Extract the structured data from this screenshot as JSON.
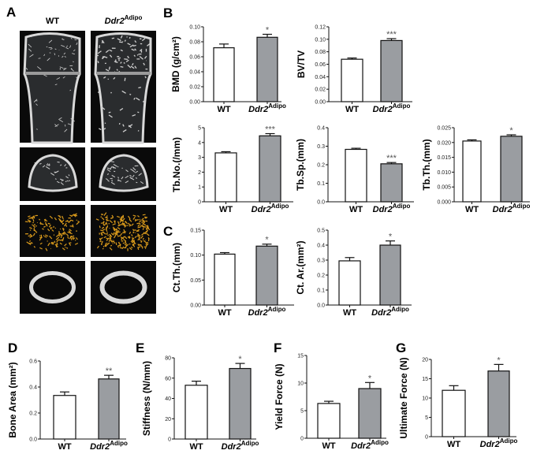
{
  "panels": {
    "A": "A",
    "B": "B",
    "C": "C",
    "D": "D",
    "E": "E",
    "F": "F",
    "G": "G"
  },
  "panel_a": {
    "columns": [
      {
        "label": "WT",
        "italic": false
      },
      {
        "label": "Ddr2",
        "sup": "Adipo",
        "italic": true
      }
    ],
    "rows": [
      "longitudinal-section",
      "cross-section",
      "3d-trabecular-reconstruction",
      "cortical-ring"
    ],
    "colors": {
      "background": "#0a0a0a",
      "bone": "#d8d8d8",
      "trabecular_3d": "#d99a1c"
    }
  },
  "colors": {
    "wt_bar": "#ffffff",
    "ddr2_bar": "#9a9da1",
    "stroke": "#111111"
  },
  "categories": [
    {
      "label": "WT"
    },
    {
      "label": "Ddr2",
      "sup": "Adipo"
    }
  ],
  "chart_data": [
    {
      "panel": "B",
      "type": "bar",
      "ylabel": "BMD (g/cm²)",
      "ylim": [
        0,
        0.1
      ],
      "yticks": [
        "0.00",
        "0.02",
        "0.04",
        "0.06",
        "0.08",
        "0.10"
      ],
      "values": [
        0.072,
        0.086
      ],
      "errors": [
        0.005,
        0.004
      ],
      "significance": "*"
    },
    {
      "panel": "B",
      "type": "bar",
      "ylabel": "BV/TV",
      "ylim": [
        0,
        0.12
      ],
      "yticks": [
        "0.00",
        "0.02",
        "0.04",
        "0.06",
        "0.08",
        "0.10",
        "0.12"
      ],
      "values": [
        0.068,
        0.098
      ],
      "errors": [
        0.002,
        0.003
      ],
      "significance": "***"
    },
    {
      "panel": "B",
      "type": "bar",
      "ylabel": "Tb.No.(/mm)",
      "ylim": [
        0,
        5
      ],
      "yticks": [
        "0",
        "1",
        "2",
        "3",
        "4",
        "5"
      ],
      "values": [
        3.3,
        4.45
      ],
      "errors": [
        0.08,
        0.15
      ],
      "significance": "***"
    },
    {
      "panel": "B",
      "type": "bar",
      "ylabel": "Tb.Sp.(mm)",
      "ylim": [
        0,
        0.4
      ],
      "yticks": [
        "0.0",
        "0.1",
        "0.2",
        "0.3",
        "0.4"
      ],
      "values": [
        0.283,
        0.205
      ],
      "errors": [
        0.006,
        0.007
      ],
      "significance": "***"
    },
    {
      "panel": "B",
      "type": "bar",
      "ylabel": "Tb.Th.(mm)",
      "ylim": [
        0,
        0.025
      ],
      "yticks": [
        "0.000",
        "0.005",
        "0.010",
        "0.015",
        "0.020",
        "0.025"
      ],
      "values": [
        0.0205,
        0.0221
      ],
      "errors": [
        0.0004,
        0.0005
      ],
      "significance": "*"
    },
    {
      "panel": "C",
      "type": "bar",
      "ylabel": "Ct.Th.(mm)",
      "ylim": [
        0,
        0.15
      ],
      "yticks": [
        "0.00",
        "0.05",
        "0.10",
        "0.15"
      ],
      "values": [
        0.102,
        0.118
      ],
      "errors": [
        0.003,
        0.004
      ],
      "significance": "*"
    },
    {
      "panel": "C",
      "type": "bar",
      "ylabel": "Ct. Ar.(mm²)",
      "ylim": [
        0,
        0.5
      ],
      "yticks": [
        "0.0",
        "0.1",
        "0.2",
        "0.3",
        "0.4",
        "0.5"
      ],
      "values": [
        0.295,
        0.4
      ],
      "errors": [
        0.022,
        0.028
      ],
      "significance": "*"
    },
    {
      "panel": "D",
      "type": "bar",
      "ylabel": "Bone Area (mm²)",
      "ylim": [
        0,
        0.6
      ],
      "yticks": [
        "0.0",
        "0.2",
        "0.4",
        "0.6"
      ],
      "values": [
        0.335,
        0.462
      ],
      "errors": [
        0.027,
        0.028
      ],
      "significance": "**"
    },
    {
      "panel": "E",
      "type": "bar",
      "ylabel": "Stiffness (N/mm)",
      "ylim": [
        0,
        80
      ],
      "yticks": [
        "0",
        "20",
        "40",
        "60",
        "80"
      ],
      "values": [
        53,
        69.5
      ],
      "errors": [
        4,
        5
      ],
      "significance": "*"
    },
    {
      "panel": "F",
      "type": "bar",
      "ylabel": "Yield Force (N)",
      "ylim": [
        0,
        15
      ],
      "yticks": [
        "0",
        "5",
        "10",
        "15"
      ],
      "values": [
        6.3,
        9.0
      ],
      "errors": [
        0.4,
        1.1
      ],
      "significance": "*"
    },
    {
      "panel": "G",
      "type": "bar",
      "ylabel": "Ultimate Force (N)",
      "ylim": [
        0,
        20
      ],
      "yticks": [
        "0",
        "5",
        "10",
        "15",
        "20"
      ],
      "values": [
        12,
        17
      ],
      "errors": [
        1.2,
        1.7
      ],
      "significance": "*"
    }
  ]
}
